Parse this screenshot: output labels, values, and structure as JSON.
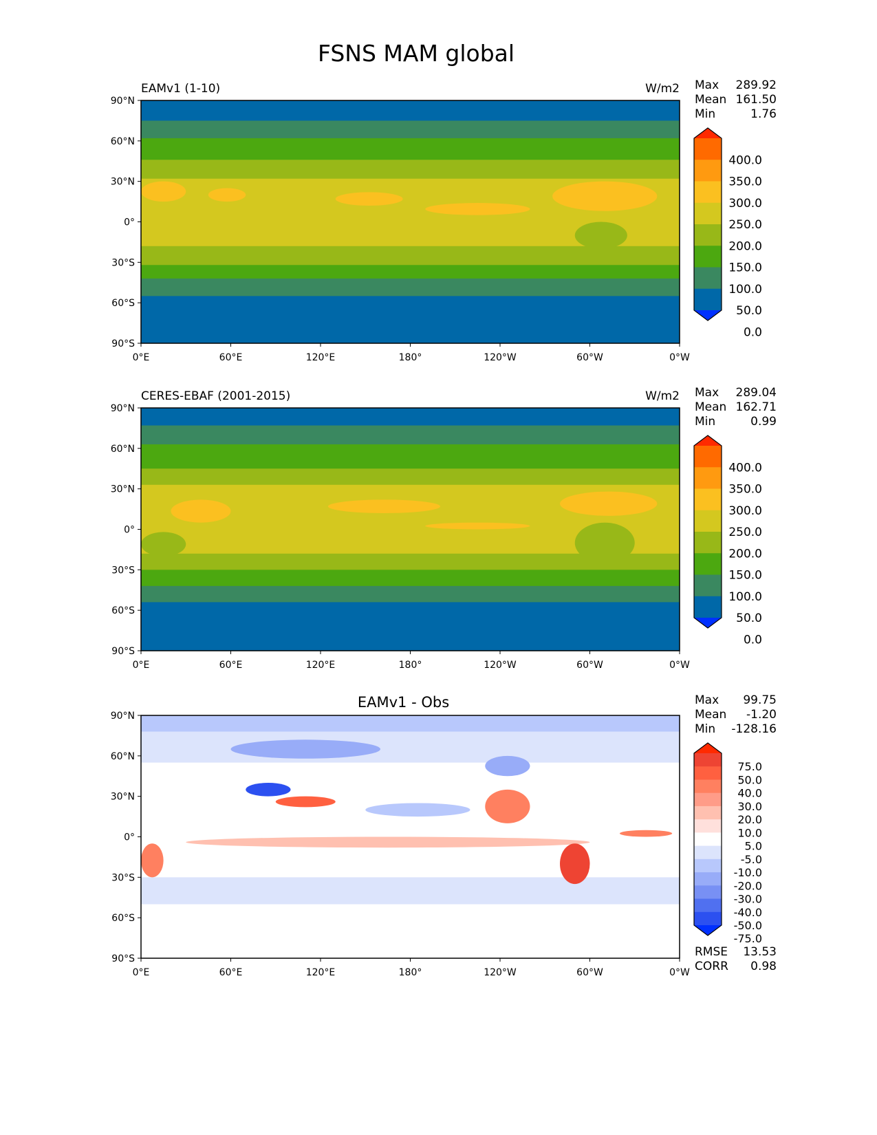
{
  "title": "FSNS MAM global",
  "chart_data": [
    {
      "type": "heatmap",
      "title_left": "EAMv1 (1-10)",
      "units": "W/m2",
      "stats": {
        "max_label": "Max",
        "max": "289.92",
        "mean_label": "Mean",
        "mean": "161.50",
        "min_label": "Min",
        "min": "1.76"
      },
      "colorbar": {
        "levels": [
          "400.0",
          "350.0",
          "300.0",
          "250.0",
          "200.0",
          "150.0",
          "100.0",
          "50.0",
          "0.0"
        ],
        "colors": [
          "#ff2a00",
          "#ff6a00",
          "#ff9a10",
          "#fbc020",
          "#d4c81f",
          "#98b818",
          "#4ca810",
          "#3a8860",
          "#0068a8",
          "#0030ff"
        ]
      },
      "zonal_bands": [
        [
          90,
          75,
          "#0068a8"
        ],
        [
          75,
          62,
          "#3a8860"
        ],
        [
          62,
          46,
          "#4ca810"
        ],
        [
          46,
          32,
          "#98b818"
        ],
        [
          32,
          -18,
          "#d4c81f"
        ],
        [
          -18,
          -32,
          "#98b818"
        ],
        [
          -32,
          -42,
          "#4ca810"
        ],
        [
          -42,
          -55,
          "#3a8860"
        ],
        [
          -55,
          -90,
          "#0068a8"
        ]
      ],
      "patches": [
        [
          130,
          175,
          22,
          12,
          "#fbc020"
        ],
        [
          190,
          260,
          14,
          5,
          "#fbc020"
        ],
        [
          275,
          345,
          30,
          8,
          "#fbc020"
        ],
        [
          0,
          30,
          30,
          15,
          "#fbc020"
        ],
        [
          45,
          70,
          25,
          15,
          "#fbc020"
        ],
        [
          290,
          325,
          0,
          -20,
          "#98b818"
        ]
      ]
    },
    {
      "type": "heatmap",
      "title_left": "CERES-EBAF (2001-2015)",
      "units": "W/m2",
      "stats": {
        "max_label": "Max",
        "max": "289.04",
        "mean_label": "Mean",
        "mean": "162.71",
        "min_label": "Min",
        "min": "0.99"
      },
      "colorbar": {
        "levels": [
          "400.0",
          "350.0",
          "300.0",
          "250.0",
          "200.0",
          "150.0",
          "100.0",
          "50.0",
          "0.0"
        ],
        "colors": [
          "#ff2a00",
          "#ff6a00",
          "#ff9a10",
          "#fbc020",
          "#d4c81f",
          "#98b818",
          "#4ca810",
          "#3a8860",
          "#0068a8",
          "#0030ff"
        ]
      },
      "zonal_bands": [
        [
          90,
          77,
          "#0068a8"
        ],
        [
          77,
          63,
          "#3a8860"
        ],
        [
          63,
          45,
          "#4ca810"
        ],
        [
          45,
          33,
          "#98b818"
        ],
        [
          33,
          -18,
          "#d4c81f"
        ],
        [
          -18,
          -30,
          "#98b818"
        ],
        [
          -30,
          -42,
          "#4ca810"
        ],
        [
          -42,
          -54,
          "#3a8860"
        ],
        [
          -54,
          -90,
          "#0068a8"
        ]
      ],
      "patches": [
        [
          125,
          200,
          22,
          12,
          "#fbc020"
        ],
        [
          190,
          260,
          5,
          0,
          "#fbc020"
        ],
        [
          280,
          345,
          28,
          10,
          "#fbc020"
        ],
        [
          20,
          60,
          22,
          5,
          "#fbc020"
        ],
        [
          290,
          330,
          5,
          -25,
          "#98b818"
        ],
        [
          0,
          30,
          -2,
          -20,
          "#98b818"
        ]
      ]
    },
    {
      "type": "heatmap",
      "title_center": "EAMv1 - Obs",
      "stats": {
        "max_label": "Max",
        "max": "99.75",
        "mean_label": "Mean",
        "mean": "-1.20",
        "min_label": "Min",
        "min": "-128.16"
      },
      "metrics": {
        "rmse_label": "RMSE",
        "rmse": "13.53",
        "corr_label": "CORR",
        "corr": "0.98"
      },
      "colorbar": {
        "levels": [
          "75.0",
          "50.0",
          "40.0",
          "30.0",
          "20.0",
          "10.0",
          "5.0",
          "-5.0",
          "-10.0",
          "-20.0",
          "-30.0",
          "-40.0",
          "-50.0",
          "-75.0"
        ],
        "colors": [
          "#ff2a00",
          "#ee4433",
          "#ff6040",
          "#ff8060",
          "#ff9c88",
          "#ffc0b0",
          "#ffe0dc",
          "#ffffff",
          "#dce4fc",
          "#b8c8fc",
          "#98acf8",
          "#7890f4",
          "#5070f0",
          "#2c50f0",
          "#0030ff"
        ]
      },
      "zonal_bands": [
        [
          90,
          78,
          "#b8c8fc"
        ],
        [
          78,
          55,
          "#dce4fc"
        ],
        [
          55,
          -30,
          "#ffffff"
        ],
        [
          -30,
          -50,
          "#dce4fc"
        ],
        [
          -50,
          -90,
          "#ffffff"
        ]
      ],
      "patches": [
        [
          60,
          160,
          72,
          58,
          "#98acf8"
        ],
        [
          70,
          100,
          40,
          30,
          "#2c50f0"
        ],
        [
          90,
          130,
          30,
          22,
          "#ff6040"
        ],
        [
          30,
          300,
          0,
          -8,
          "#ffc0b0"
        ],
        [
          150,
          220,
          25,
          15,
          "#b8c8fc"
        ],
        [
          230,
          260,
          35,
          10,
          "#ff8060"
        ],
        [
          280,
          300,
          -5,
          -35,
          "#ee4433"
        ],
        [
          0,
          15,
          -5,
          -30,
          "#ff8060"
        ],
        [
          320,
          355,
          5,
          0,
          "#ff8060"
        ],
        [
          230,
          260,
          60,
          45,
          "#98acf8"
        ]
      ]
    }
  ],
  "lat_ticks": [
    "90°N",
    "60°N",
    "30°N",
    "0°",
    "30°S",
    "60°S",
    "90°S"
  ],
  "lon_ticks": [
    "0°E",
    "60°E",
    "120°E",
    "180°",
    "120°W",
    "60°W",
    "0°W"
  ]
}
